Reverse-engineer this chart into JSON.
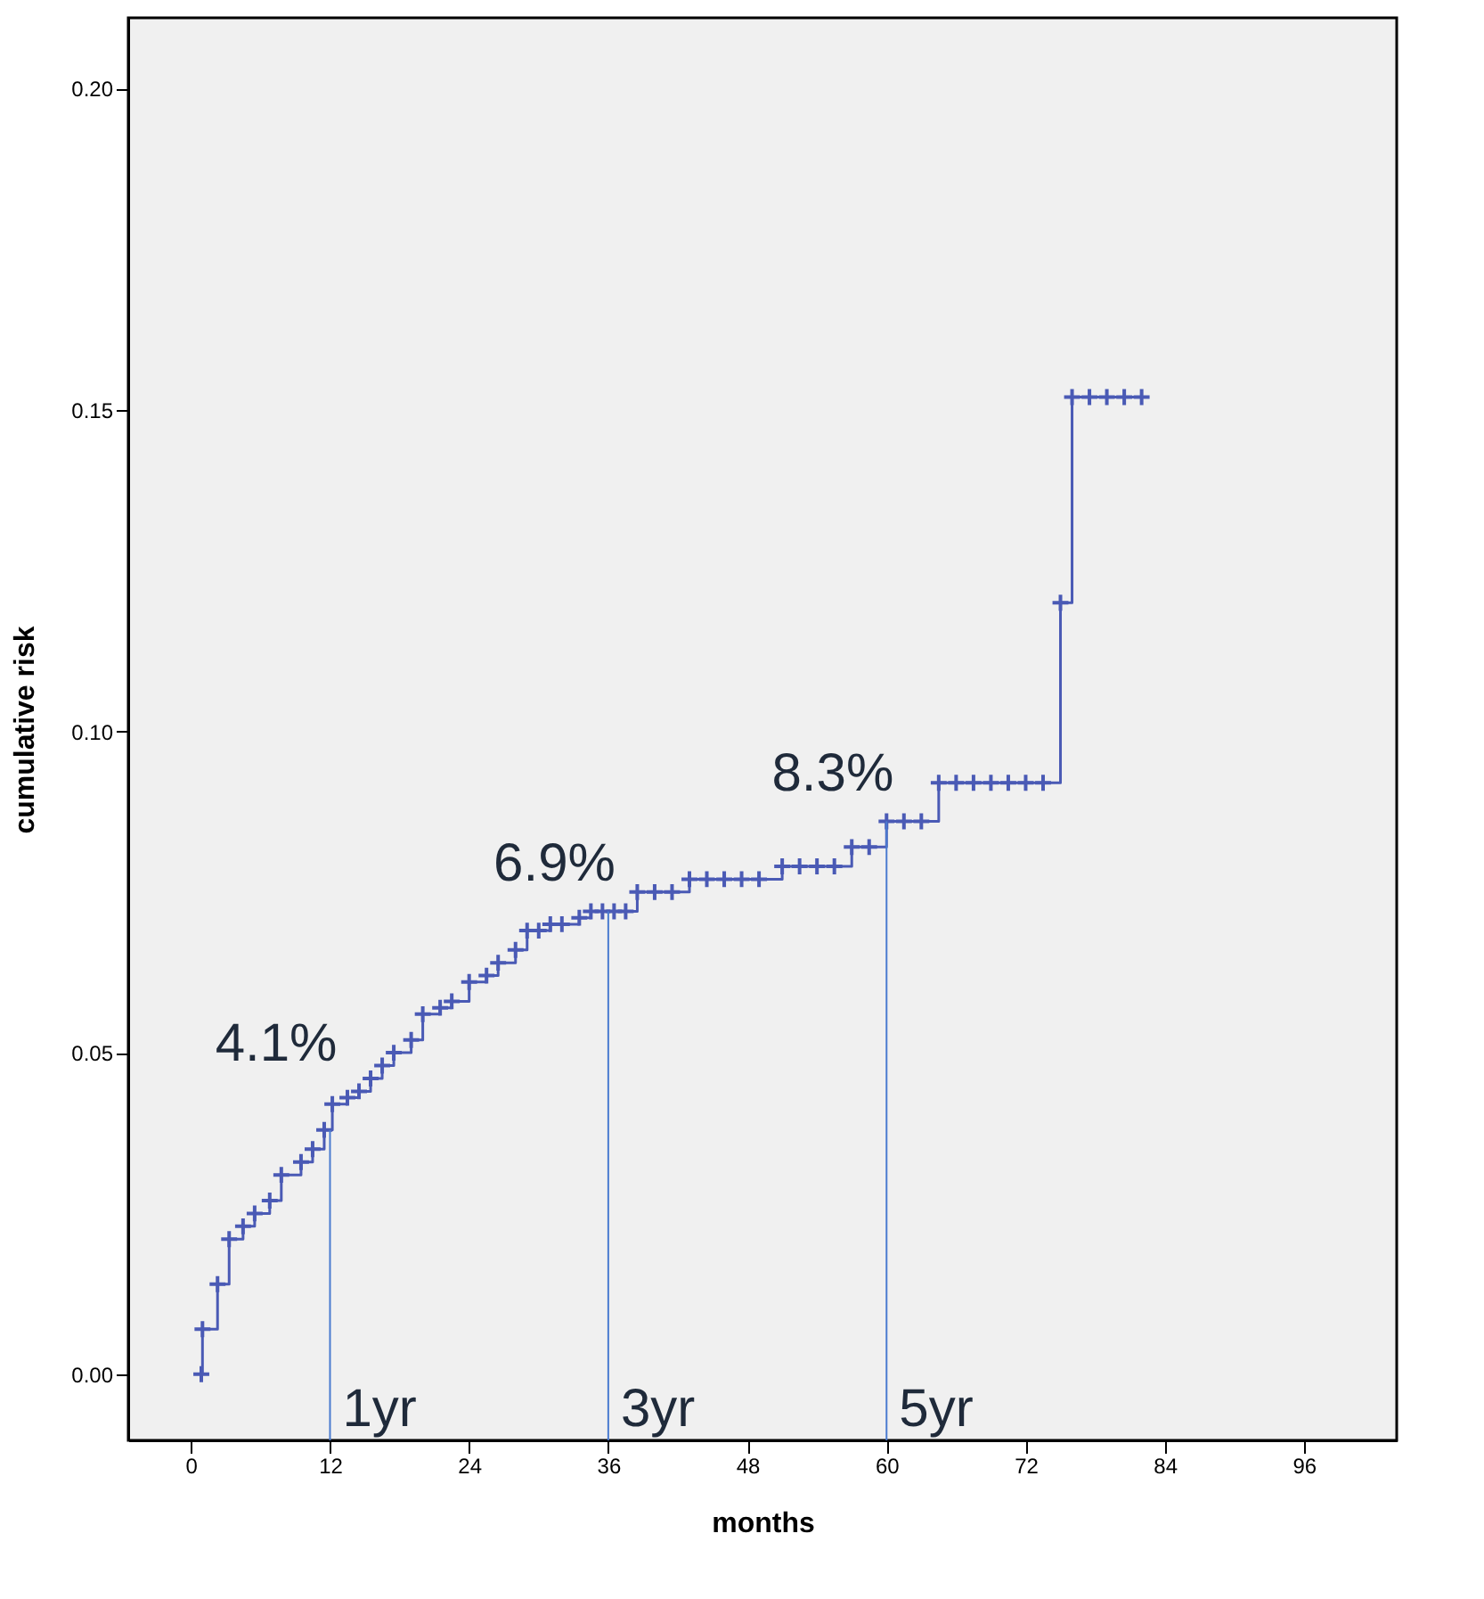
{
  "chart_data": {
    "type": "step",
    "xlabel": "months",
    "ylabel": "cumulative risk",
    "xlim": [
      -5.4,
      104
    ],
    "xticks": [
      0,
      12,
      24,
      36,
      48,
      60,
      72,
      84,
      96
    ],
    "ylim": [
      -0.0103,
      0.211
    ],
    "yticks": [
      {
        "value": 0,
        "label": "0.00"
      },
      {
        "value": 0.05,
        "label": "0.05"
      },
      {
        "value": 0.1,
        "label": "0.10"
      },
      {
        "value": 0.15,
        "label": "0.15"
      },
      {
        "value": 0.2,
        "label": "0.20"
      }
    ],
    "grid": false,
    "marker": "cross",
    "line_style": "solid",
    "series": [
      {
        "color": "#4a5ab5",
        "x": [
          0.9,
          1.0,
          2.3,
          3.3,
          4.5,
          5.5,
          6.8,
          7.8,
          9.5,
          10.5,
          11.5,
          12.2,
          13.5,
          14.5,
          15.5,
          16.5,
          17.5,
          19,
          20,
          21.5,
          22.5,
          24,
          25.5,
          26.5,
          28,
          29,
          30,
          31,
          32,
          33.5,
          34.5,
          35.5,
          36.5,
          37.5,
          38.5,
          40,
          41.5,
          43,
          44.5,
          46,
          47.5,
          49,
          51,
          52.5,
          54,
          55.5,
          57,
          58.5,
          60,
          61.5,
          63,
          64.5,
          66,
          67.5,
          69,
          70.5,
          72,
          73.5,
          75,
          76,
          77.5,
          79,
          80.5,
          82
        ],
        "values": [
          0.0,
          0.007,
          0.014,
          0.021,
          0.023,
          0.025,
          0.027,
          0.031,
          0.033,
          0.035,
          0.038,
          0.042,
          0.043,
          0.044,
          0.046,
          0.048,
          0.05,
          0.052,
          0.056,
          0.057,
          0.058,
          0.061,
          0.062,
          0.064,
          0.066,
          0.069,
          0.069,
          0.07,
          0.07,
          0.071,
          0.072,
          0.072,
          0.072,
          0.072,
          0.075,
          0.075,
          0.075,
          0.077,
          0.077,
          0.077,
          0.077,
          0.077,
          0.079,
          0.079,
          0.079,
          0.079,
          0.082,
          0.082,
          0.086,
          0.086,
          0.086,
          0.092,
          0.092,
          0.092,
          0.092,
          0.092,
          0.092,
          0.092,
          0.12,
          0.152,
          0.152,
          0.152,
          0.152,
          0.152
        ]
      }
    ],
    "ref_lines": [
      {
        "axis": "x",
        "value": 12,
        "label": "1yr",
        "color": "#4a7bd0"
      },
      {
        "axis": "x",
        "value": 36,
        "label": "3yr",
        "color": "#4a7bd0"
      },
      {
        "axis": "x",
        "value": 60,
        "label": "5yr",
        "color": "#4a7bd0"
      }
    ],
    "annotations": [
      {
        "text": "4.1%",
        "x": 12,
        "y": 0.041
      },
      {
        "text": "6.9%",
        "x": 36,
        "y": 0.069
      },
      {
        "text": "8.3%",
        "x": 60,
        "y": 0.083
      }
    ]
  }
}
